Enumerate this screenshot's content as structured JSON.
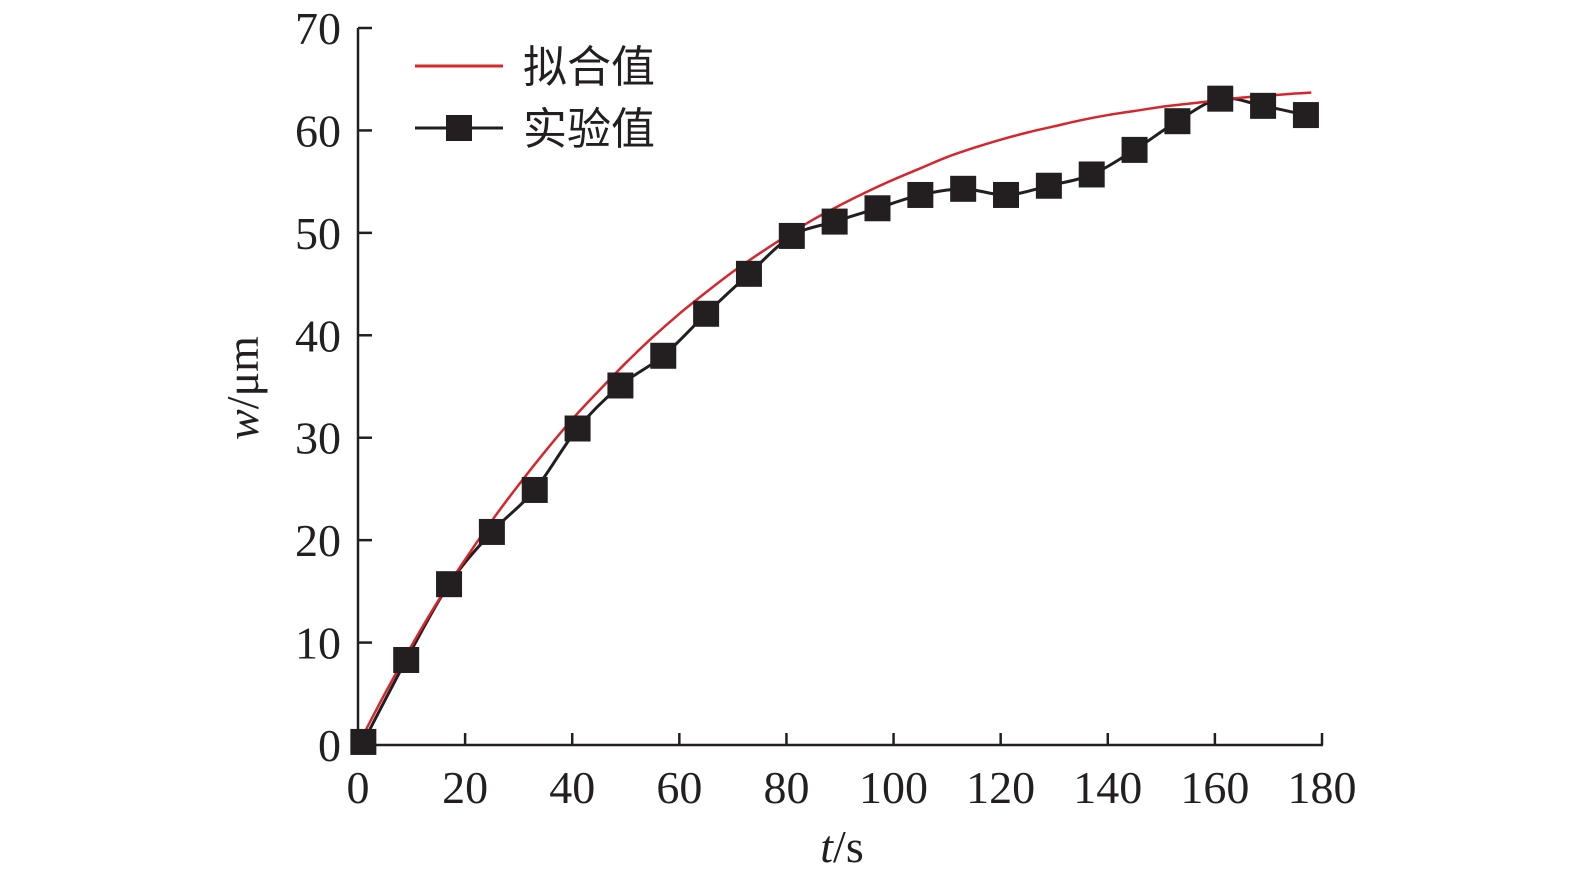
{
  "chart_data": {
    "type": "line",
    "xlabel": {
      "var": "t",
      "unit": "/s"
    },
    "ylabel": {
      "var": "w",
      "unit": "/μm"
    },
    "xlim": [
      0,
      180
    ],
    "ylim": [
      0,
      70
    ],
    "x_ticks": [
      0,
      20,
      40,
      60,
      80,
      100,
      120,
      140,
      160,
      180
    ],
    "y_ticks": [
      0,
      10,
      20,
      30,
      40,
      50,
      60,
      70
    ],
    "grid": false,
    "legend_position": "top-left",
    "series": [
      {
        "name": "拟合值",
        "style": "line",
        "color": "#d7262b",
        "x": [
          0,
          5,
          10,
          15,
          20,
          25,
          30,
          35,
          40,
          45,
          50,
          55,
          60,
          65,
          70,
          75,
          80,
          85,
          90,
          95,
          100,
          105,
          110,
          115,
          120,
          125,
          130,
          135,
          140,
          145,
          150,
          155,
          160,
          165,
          170,
          175,
          178
        ],
        "y": [
          0.0,
          5.0,
          9.7,
          14.1,
          18.1,
          21.9,
          25.4,
          28.7,
          31.8,
          34.6,
          37.3,
          39.8,
          42.1,
          44.2,
          46.2,
          48.0,
          49.7,
          51.3,
          52.7,
          54.0,
          55.2,
          56.3,
          57.4,
          58.3,
          59.1,
          59.8,
          60.4,
          61.0,
          61.5,
          61.9,
          62.3,
          62.6,
          62.9,
          63.2,
          63.4,
          63.6,
          63.7
        ]
      },
      {
        "name": "实验值",
        "style": "line-marker",
        "color": "#231f20",
        "x": [
          1,
          9,
          17,
          25,
          33,
          41,
          49,
          57,
          65,
          73,
          81,
          89,
          97,
          105,
          113,
          121,
          129,
          137,
          145,
          153,
          161,
          169,
          177
        ],
        "y": [
          0.3,
          8.3,
          15.7,
          20.8,
          24.9,
          30.9,
          35.1,
          38.0,
          42.1,
          46.0,
          49.7,
          51.1,
          52.4,
          53.7,
          54.3,
          53.7,
          54.6,
          55.7,
          58.1,
          60.9,
          63.1,
          62.4,
          61.5
        ]
      }
    ]
  }
}
